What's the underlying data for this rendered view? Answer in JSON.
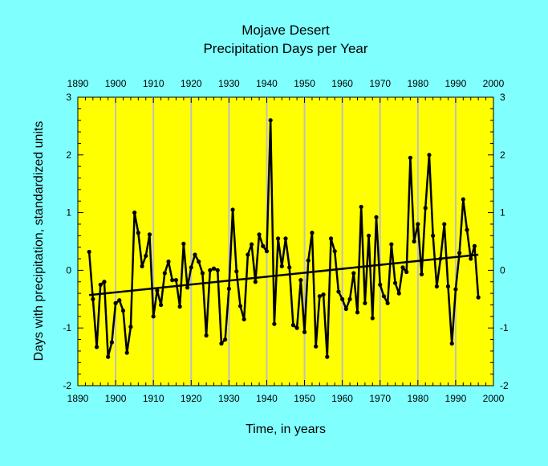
{
  "chart_data": {
    "type": "line",
    "title": "Mojave Desert",
    "subtitle": "Precipitation Days per Year",
    "xlabel": "Time, in years",
    "ylabel": "Days with precipitation, standardized units",
    "xlim": [
      1890,
      2000
    ],
    "ylim": [
      -2,
      3
    ],
    "xticks": [
      1890,
      1900,
      1910,
      1920,
      1930,
      1940,
      1950,
      1960,
      1970,
      1980,
      1990,
      2000
    ],
    "yticks": [
      -2,
      -1,
      0,
      1,
      2,
      3
    ],
    "grid": "vertical at decades",
    "colors": {
      "background": "#80ffff",
      "plot": "#ffff00",
      "line": "#000000",
      "grid": "#c0c0c0"
    },
    "x": [
      1893,
      1894,
      1895,
      1896,
      1897,
      1898,
      1899,
      1900,
      1901,
      1902,
      1903,
      1904,
      1905,
      1906,
      1907,
      1908,
      1909,
      1910,
      1911,
      1912,
      1913,
      1914,
      1915,
      1916,
      1917,
      1918,
      1919,
      1920,
      1921,
      1922,
      1923,
      1924,
      1925,
      1926,
      1927,
      1928,
      1929,
      1930,
      1931,
      1932,
      1933,
      1934,
      1935,
      1936,
      1937,
      1938,
      1939,
      1940,
      1941,
      1942,
      1943,
      1944,
      1945,
      1946,
      1947,
      1948,
      1949,
      1950,
      1951,
      1952,
      1953,
      1954,
      1955,
      1956,
      1957,
      1958,
      1959,
      1960,
      1961,
      1962,
      1963,
      1964,
      1965,
      1966,
      1967,
      1968,
      1969,
      1970,
      1971,
      1972,
      1973,
      1974,
      1975,
      1976,
      1977,
      1978,
      1979,
      1980,
      1981,
      1982,
      1983,
      1984,
      1985,
      1986,
      1987,
      1988,
      1989,
      1990,
      1991,
      1992,
      1993,
      1994,
      1995,
      1996
    ],
    "values": [
      0.32,
      -0.5,
      -1.33,
      -0.25,
      -0.2,
      -1.5,
      -1.25,
      -0.57,
      -0.52,
      -0.7,
      -1.43,
      -0.98,
      1.0,
      0.65,
      0.07,
      0.25,
      0.62,
      -0.8,
      -0.35,
      -0.6,
      -0.05,
      0.15,
      -0.17,
      -0.17,
      -0.63,
      0.46,
      -0.3,
      0.05,
      0.27,
      0.15,
      -0.05,
      -1.13,
      0.0,
      0.03,
      0.0,
      -1.27,
      -1.2,
      -0.32,
      1.05,
      -0.02,
      -0.62,
      -0.85,
      0.27,
      0.45,
      -0.2,
      0.62,
      0.42,
      0.33,
      2.6,
      -0.93,
      0.55,
      0.07,
      0.55,
      0.05,
      -0.95,
      -1.0,
      -0.17,
      -1.07,
      0.17,
      0.65,
      -1.32,
      -0.45,
      -0.42,
      -1.5,
      0.55,
      0.33,
      -0.37,
      -0.5,
      -0.67,
      -0.5,
      -0.05,
      -0.73,
      1.1,
      -0.57,
      0.6,
      -0.83,
      0.92,
      -0.25,
      -0.45,
      -0.57,
      0.45,
      -0.22,
      -0.4,
      0.05,
      -0.03,
      1.95,
      0.5,
      0.8,
      -0.07,
      1.08,
      2.0,
      0.6,
      -0.28,
      0.2,
      0.8,
      -0.28,
      -1.27,
      -0.33,
      0.3,
      1.23,
      0.7,
      0.2,
      0.42,
      -0.47
    ],
    "trend": {
      "x": [
        1893,
        1996
      ],
      "y": [
        -0.43,
        0.27
      ]
    }
  }
}
